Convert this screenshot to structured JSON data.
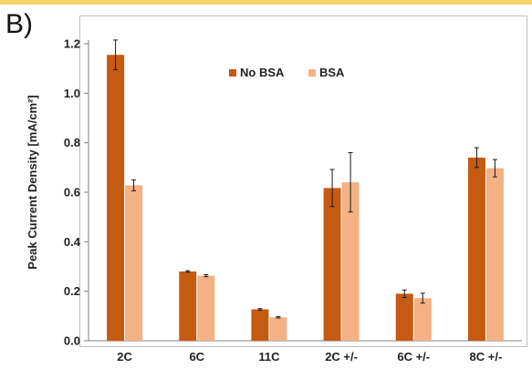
{
  "panel_label": "B)",
  "chart_data": {
    "type": "bar",
    "categories": [
      "2C",
      "6C",
      "11C",
      "2C +/-",
      "6C +/-",
      "8C +/-"
    ],
    "series": [
      {
        "name": "No BSA",
        "color": "#c55a11",
        "values": [
          1.155,
          0.28,
          0.127,
          0.617,
          0.19,
          0.74
        ],
        "errors": [
          0.06,
          0.003,
          0.003,
          0.075,
          0.015,
          0.04
        ]
      },
      {
        "name": "BSA",
        "color": "#f4b183",
        "values": [
          0.628,
          0.263,
          0.095,
          0.64,
          0.172,
          0.697
        ],
        "errors": [
          0.022,
          0.004,
          0.003,
          0.12,
          0.02,
          0.035
        ]
      }
    ],
    "ylabel": "Peak Current  Density [mA/cm²]",
    "ylim": [
      0,
      1.2
    ],
    "yticks": [
      "0.0",
      "0.2",
      "0.4",
      "0.6",
      "0.8",
      "1.0",
      "1.2"
    ],
    "legend": {
      "position": "top-center"
    },
    "grid": false
  }
}
